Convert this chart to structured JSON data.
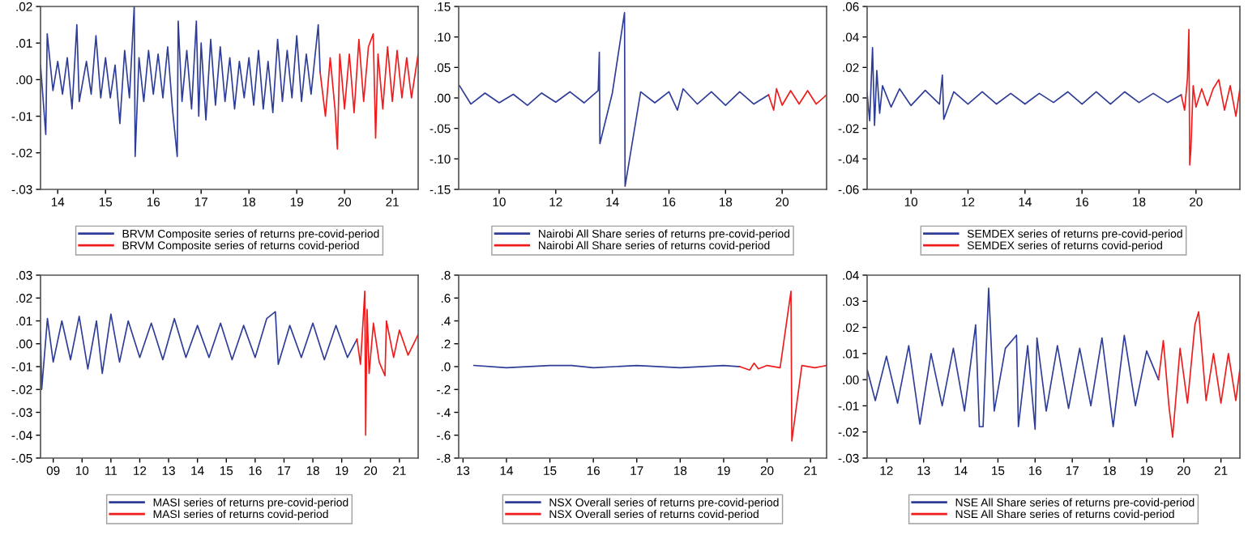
{
  "chart_data": [
    {
      "type": "line",
      "xlim": [
        13.64,
        21.54
      ],
      "xticks": [
        14,
        15,
        16,
        17,
        18,
        19,
        20,
        21
      ],
      "ylim": [
        -0.03,
        0.02
      ],
      "yticks": [
        {
          "value": -0.03,
          "label": "-.03"
        },
        {
          "value": -0.02,
          "label": "-.02"
        },
        {
          "value": -0.01,
          "label": "-.01"
        },
        {
          "value": 0.0,
          "label": ".00"
        },
        {
          "value": 0.01,
          "label": ".01"
        },
        {
          "value": 0.02,
          "label": ".02"
        }
      ],
      "grid": false,
      "legend": "bottom",
      "series": [
        {
          "name": "BRVM Composite series of returns pre-covid-period",
          "color": "#2e3d97",
          "x": [
            13.64,
            13.75,
            13.78,
            13.9,
            14.0,
            14.1,
            14.2,
            14.3,
            14.4,
            14.45,
            14.6,
            14.7,
            14.8,
            14.9,
            15.0,
            15.1,
            15.2,
            15.3,
            15.4,
            15.5,
            15.6,
            15.62,
            15.7,
            15.8,
            15.9,
            16.0,
            16.1,
            16.2,
            16.3,
            16.4,
            16.5,
            16.52,
            16.6,
            16.7,
            16.8,
            16.9,
            16.95,
            17.0,
            17.1,
            17.2,
            17.3,
            17.4,
            17.5,
            17.6,
            17.7,
            17.8,
            17.9,
            18.0,
            18.1,
            18.2,
            18.3,
            18.4,
            18.5,
            18.6,
            18.7,
            18.8,
            18.9,
            19.0,
            19.1,
            19.2,
            19.3,
            19.45,
            19.49
          ],
          "values": [
            0.004,
            -0.015,
            0.0125,
            -0.003,
            0.005,
            -0.004,
            0.006,
            -0.008,
            0.015,
            -0.006,
            0.005,
            -0.004,
            0.012,
            -0.005,
            0.006,
            -0.005,
            0.004,
            -0.012,
            0.008,
            -0.005,
            0.02,
            -0.021,
            0.006,
            -0.006,
            0.008,
            -0.004,
            0.007,
            -0.005,
            0.009,
            -0.008,
            -0.021,
            0.016,
            -0.006,
            0.008,
            -0.008,
            0.016,
            -0.01,
            0.01,
            -0.011,
            0.011,
            -0.007,
            0.009,
            -0.006,
            0.006,
            -0.008,
            0.005,
            -0.005,
            0.006,
            -0.007,
            0.008,
            -0.008,
            0.005,
            -0.009,
            0.011,
            -0.006,
            0.008,
            -0.005,
            0.012,
            -0.006,
            0.007,
            -0.004,
            0.015,
            0.002
          ]
        },
        {
          "name": "BRVM Composite series of returns covid-period",
          "color": "#ee1c1c",
          "x": [
            19.49,
            19.6,
            19.7,
            19.8,
            19.85,
            19.9,
            20.0,
            20.1,
            20.2,
            20.3,
            20.4,
            20.5,
            20.6,
            20.65,
            20.7,
            20.8,
            20.9,
            21.0,
            21.1,
            21.2,
            21.3,
            21.4,
            21.54
          ],
          "values": [
            0.002,
            -0.01,
            0.006,
            -0.008,
            -0.019,
            0.007,
            -0.008,
            0.007,
            -0.009,
            0.011,
            -0.006,
            0.009,
            0.0125,
            -0.016,
            0.007,
            -0.008,
            0.009,
            -0.006,
            0.008,
            -0.005,
            0.006,
            -0.005,
            0.007
          ]
        }
      ]
    },
    {
      "type": "line",
      "xlim": [
        8.57,
        21.57
      ],
      "xticks": [
        10,
        12,
        14,
        16,
        18,
        20
      ],
      "ylim": [
        -0.15,
        0.15
      ],
      "yticks": [
        {
          "value": -0.15,
          "label": "-.15"
        },
        {
          "value": -0.1,
          "label": "-.10"
        },
        {
          "value": -0.05,
          "label": "-.05"
        },
        {
          "value": 0.0,
          "label": ".00"
        },
        {
          "value": 0.05,
          "label": ".05"
        },
        {
          "value": 0.1,
          "label": ".10"
        },
        {
          "value": 0.15,
          "label": ".15"
        }
      ],
      "grid": false,
      "legend": "bottom",
      "series": [
        {
          "name": "Nairobi All Share series of returns pre-covid-period",
          "color": "#2e3d97",
          "x": [
            8.6,
            9.0,
            9.5,
            10.0,
            10.5,
            11.0,
            11.5,
            12.0,
            12.5,
            13.0,
            13.5,
            13.54,
            13.56,
            14.0,
            14.43,
            14.45,
            15.0,
            15.5,
            16.0,
            16.3,
            16.5,
            17.0,
            17.5,
            18.0,
            18.5,
            19.0,
            19.52
          ],
          "values": [
            0.02,
            -0.01,
            0.008,
            -0.008,
            0.006,
            -0.012,
            0.008,
            -0.007,
            0.01,
            -0.008,
            0.012,
            0.075,
            -0.075,
            0.008,
            0.14,
            -0.145,
            0.01,
            -0.008,
            0.01,
            -0.02,
            0.015,
            -0.01,
            0.01,
            -0.012,
            0.01,
            -0.01,
            0.005
          ]
        },
        {
          "name": "Nairobi All Share series of returns covid-period",
          "color": "#ee1c1c",
          "x": [
            19.52,
            19.7,
            19.8,
            20.0,
            20.3,
            20.6,
            20.9,
            21.2,
            21.57
          ],
          "values": [
            0.005,
            -0.02,
            0.015,
            -0.012,
            0.012,
            -0.01,
            0.012,
            -0.01,
            0.005
          ]
        }
      ]
    },
    {
      "type": "line",
      "xlim": [
        8.46,
        21.54
      ],
      "xticks": [
        10,
        12,
        14,
        16,
        18,
        20
      ],
      "ylim": [
        -0.06,
        0.06
      ],
      "yticks": [
        {
          "value": -0.06,
          "label": "-.06"
        },
        {
          "value": -0.04,
          "label": "-.04"
        },
        {
          "value": -0.02,
          "label": "-.02"
        },
        {
          "value": 0.0,
          "label": ".00"
        },
        {
          "value": 0.02,
          "label": ".02"
        },
        {
          "value": 0.04,
          "label": ".04"
        },
        {
          "value": 0.06,
          "label": ".06"
        }
      ],
      "grid": false,
      "legend": "bottom",
      "series": [
        {
          "name": "SEMDEX series of returns pre-covid-period",
          "color": "#2e3d97",
          "x": [
            8.46,
            8.55,
            8.65,
            8.72,
            8.8,
            8.9,
            9.0,
            9.3,
            9.6,
            10.0,
            10.5,
            11.0,
            11.1,
            11.15,
            11.5,
            12.0,
            12.5,
            13.0,
            13.5,
            14.0,
            14.5,
            15.0,
            15.5,
            16.0,
            16.5,
            17.0,
            17.5,
            18.0,
            18.5,
            19.0,
            19.48
          ],
          "values": [
            0.003,
            -0.015,
            0.033,
            -0.018,
            0.018,
            -0.01,
            0.008,
            -0.006,
            0.006,
            -0.005,
            0.005,
            -0.004,
            0.015,
            -0.014,
            0.004,
            -0.004,
            0.004,
            -0.004,
            0.003,
            -0.004,
            0.003,
            -0.003,
            0.004,
            -0.004,
            0.004,
            -0.004,
            0.004,
            -0.003,
            0.003,
            -0.003,
            0.002
          ]
        },
        {
          "name": "SEMDEX series of returns covid-period",
          "color": "#ee1c1c",
          "x": [
            19.48,
            19.6,
            19.7,
            19.75,
            19.78,
            19.82,
            19.9,
            20.0,
            20.2,
            20.4,
            20.6,
            20.8,
            21.0,
            21.2,
            21.4,
            21.54
          ],
          "values": [
            0.002,
            -0.008,
            0.013,
            0.045,
            -0.044,
            -0.034,
            0.008,
            -0.006,
            0.006,
            -0.005,
            0.006,
            0.012,
            -0.008,
            0.008,
            -0.012,
            0.006
          ]
        }
      ]
    },
    {
      "type": "line",
      "xlim": [
        8.56,
        21.65
      ],
      "xticks": [
        {
          "value": 9,
          "label": "09"
        },
        10,
        11,
        12,
        13,
        14,
        15,
        16,
        17,
        18,
        19,
        20,
        21
      ],
      "ylim": [
        -0.05,
        0.03
      ],
      "yticks": [
        {
          "value": -0.05,
          "label": "-.05"
        },
        {
          "value": -0.04,
          "label": "-.04"
        },
        {
          "value": -0.03,
          "label": "-.03"
        },
        {
          "value": -0.02,
          "label": "-.02"
        },
        {
          "value": -0.01,
          "label": "-.01"
        },
        {
          "value": 0.0,
          "label": ".00"
        },
        {
          "value": 0.01,
          "label": ".01"
        },
        {
          "value": 0.02,
          "label": ".02"
        },
        {
          "value": 0.03,
          "label": ".03"
        }
      ],
      "grid": false,
      "legend": "bottom",
      "series": [
        {
          "name": "MASI series of returns pre-covid-period",
          "color": "#2e3d97",
          "x": [
            8.56,
            8.6,
            8.8,
            9.0,
            9.3,
            9.6,
            9.9,
            10.2,
            10.5,
            10.7,
            11.0,
            11.3,
            11.6,
            12.0,
            12.4,
            12.8,
            13.2,
            13.6,
            14.0,
            14.4,
            14.8,
            15.2,
            15.6,
            16.0,
            16.4,
            16.7,
            16.8,
            17.2,
            17.6,
            18.0,
            18.4,
            18.8,
            19.2,
            19.53
          ],
          "values": [
            0.005,
            -0.02,
            0.011,
            -0.008,
            0.01,
            -0.007,
            0.012,
            -0.011,
            0.01,
            -0.013,
            0.013,
            -0.008,
            0.01,
            -0.006,
            0.009,
            -0.007,
            0.011,
            -0.006,
            0.008,
            -0.006,
            0.009,
            -0.007,
            0.008,
            -0.006,
            0.011,
            0.014,
            -0.009,
            0.008,
            -0.006,
            0.009,
            -0.007,
            0.008,
            -0.006,
            0.002
          ]
        },
        {
          "name": "MASI series of returns covid-period",
          "color": "#ee1c1c",
          "x": [
            19.53,
            19.65,
            19.75,
            19.8,
            19.83,
            19.88,
            19.95,
            20.1,
            20.3,
            20.5,
            20.55,
            20.8,
            21.0,
            21.3,
            21.65
          ],
          "values": [
            0.002,
            -0.009,
            0.012,
            0.023,
            -0.04,
            0.015,
            -0.013,
            0.009,
            -0.008,
            -0.014,
            0.01,
            -0.006,
            0.006,
            -0.005,
            0.004
          ]
        }
      ]
    },
    {
      "type": "line",
      "xlim": [
        12.9,
        21.37
      ],
      "xticks": [
        13,
        14,
        15,
        16,
        17,
        18,
        19,
        20,
        21
      ],
      "ylim": [
        -0.8,
        0.8
      ],
      "yticks": [
        {
          "value": -0.8,
          "label": "-.8"
        },
        {
          "value": -0.6,
          "label": "-.6"
        },
        {
          "value": -0.4,
          "label": "-.4"
        },
        {
          "value": -0.2,
          "label": "-.2"
        },
        {
          "value": 0.0,
          "label": ".0"
        },
        {
          "value": 0.2,
          "label": ".2"
        },
        {
          "value": 0.4,
          "label": ".4"
        },
        {
          "value": 0.6,
          "label": ".6"
        },
        {
          "value": 0.8,
          "label": ".8"
        }
      ],
      "grid": false,
      "legend": "bottom",
      "series": [
        {
          "name": "NSX Overall series of returns pre-covid-period",
          "color": "#2e3d97",
          "x": [
            13.25,
            14.0,
            15.0,
            15.5,
            16.0,
            17.0,
            18.0,
            19.0,
            19.37
          ],
          "values": [
            0.01,
            -0.01,
            0.01,
            0.01,
            -0.01,
            0.01,
            -0.01,
            0.01,
            0.0
          ]
        },
        {
          "name": "NSX Overall series of returns covid-period",
          "color": "#ee1c1c",
          "x": [
            19.37,
            19.6,
            19.7,
            19.8,
            20.0,
            20.3,
            20.55,
            20.57,
            20.8,
            21.1,
            21.37
          ],
          "values": [
            0.0,
            -0.03,
            0.03,
            -0.02,
            0.01,
            -0.01,
            0.66,
            -0.65,
            0.01,
            -0.01,
            0.01
          ]
        }
      ]
    },
    {
      "type": "line",
      "xlim": [
        11.48,
        21.51
      ],
      "xticks": [
        12,
        13,
        14,
        15,
        16,
        17,
        18,
        19,
        20,
        21
      ],
      "ylim": [
        -0.03,
        0.04
      ],
      "yticks": [
        {
          "value": -0.03,
          "label": "-.03"
        },
        {
          "value": -0.02,
          "label": "-.02"
        },
        {
          "value": -0.01,
          "label": "-.01"
        },
        {
          "value": 0.0,
          "label": ".00"
        },
        {
          "value": 0.01,
          "label": ".01"
        },
        {
          "value": 0.02,
          "label": ".02"
        },
        {
          "value": 0.03,
          "label": ".03"
        },
        {
          "value": 0.04,
          "label": ".04"
        }
      ],
      "grid": false,
      "legend": "bottom",
      "series": [
        {
          "name": "NSE All Share series of returns pre-covid-period",
          "color": "#2e3d97",
          "x": [
            11.48,
            11.7,
            12.0,
            12.3,
            12.6,
            12.9,
            13.2,
            13.5,
            13.8,
            14.1,
            14.4,
            14.5,
            14.6,
            14.75,
            14.9,
            15.2,
            15.5,
            15.55,
            15.8,
            16.0,
            16.05,
            16.3,
            16.6,
            16.9,
            17.2,
            17.5,
            17.8,
            18.1,
            18.4,
            18.7,
            19.0,
            19.32
          ],
          "values": [
            0.004,
            -0.008,
            0.009,
            -0.009,
            0.013,
            -0.017,
            0.01,
            -0.01,
            0.012,
            -0.012,
            0.021,
            -0.018,
            -0.018,
            0.035,
            -0.012,
            0.012,
            0.017,
            -0.018,
            0.013,
            -0.019,
            0.016,
            -0.012,
            0.013,
            -0.011,
            0.012,
            -0.01,
            0.016,
            -0.018,
            0.017,
            -0.01,
            0.011,
            0.0
          ]
        },
        {
          "name": "NSE All Share series of returns covid-period",
          "color": "#ee1c1c",
          "x": [
            19.32,
            19.45,
            19.6,
            19.7,
            19.9,
            20.1,
            20.3,
            20.4,
            20.6,
            20.8,
            21.0,
            21.2,
            21.4,
            21.51
          ],
          "values": [
            0.0,
            0.015,
            -0.01,
            -0.022,
            0.012,
            -0.009,
            0.021,
            0.026,
            -0.008,
            0.01,
            -0.009,
            0.01,
            -0.008,
            0.004
          ]
        }
      ]
    }
  ]
}
